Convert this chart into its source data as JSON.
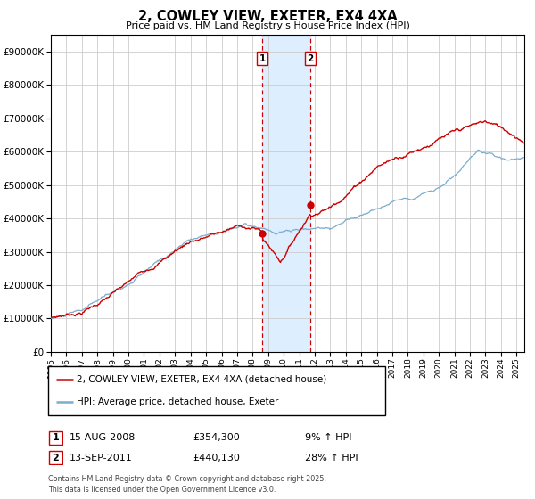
{
  "title": "2, COWLEY VIEW, EXETER, EX4 4XA",
  "subtitle": "Price paid vs. HM Land Registry's House Price Index (HPI)",
  "legend_line1": "2, COWLEY VIEW, EXETER, EX4 4XA (detached house)",
  "legend_line2": "HPI: Average price, detached house, Exeter",
  "annotation1_label": "1",
  "annotation1_date": "15-AUG-2008",
  "annotation1_price": "£354,300",
  "annotation1_hpi": "9% ↑ HPI",
  "annotation2_label": "2",
  "annotation2_date": "13-SEP-2011",
  "annotation2_price": "£440,130",
  "annotation2_hpi": "28% ↑ HPI",
  "footer": "Contains HM Land Registry data © Crown copyright and database right 2025.\nThis data is licensed under the Open Government Licence v3.0.",
  "red_color": "#cc0000",
  "blue_color": "#7aadcf",
  "shade_color": "#ddeeff",
  "grid_color": "#cccccc",
  "ylim": [
    0,
    950000
  ],
  "yticks": [
    0,
    100000,
    200000,
    300000,
    400000,
    500000,
    600000,
    700000,
    800000,
    900000
  ],
  "xlim_start": 1995.0,
  "xlim_end": 2025.5,
  "purchase1_x": 2008.625,
  "purchase1_y": 354300,
  "purchase2_x": 2011.708,
  "purchase2_y": 440130,
  "shade_x1": 2008.625,
  "shade_x2": 2011.708
}
